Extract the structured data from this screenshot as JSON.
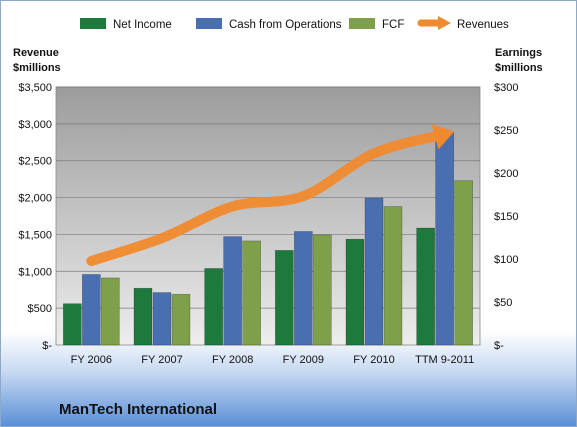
{
  "chart_data": {
    "type": "bar",
    "title": "ManTech International",
    "categories": [
      "FY 2006",
      "FY 2007",
      "FY 2008",
      "FY 2009",
      "FY 2010",
      "TTM 9-2011"
    ],
    "series": [
      {
        "name": "Net Income",
        "axis": "right",
        "color": "#1e7a3c",
        "values": [
          48,
          66,
          89,
          110,
          123,
          136
        ]
      },
      {
        "name": "Cash from Operations",
        "axis": "right",
        "color": "#4a6fb0",
        "values": [
          82,
          61,
          126,
          132,
          171,
          248
        ]
      },
      {
        "name": "FCF",
        "axis": "right",
        "color": "#7ea04a",
        "values": [
          78,
          59,
          121,
          128,
          161,
          191
        ]
      },
      {
        "name": "Revenues",
        "axis": "left",
        "type": "line",
        "color": "#f08a2e",
        "values": [
          1140,
          1450,
          1880,
          2020,
          2600,
          2860
        ]
      }
    ],
    "ylabel_left": [
      "Revenue",
      "$millions"
    ],
    "ylabel_right": [
      "Earnings",
      "$millions"
    ],
    "ylim_left": [
      0,
      3500
    ],
    "ylim_right": [
      0,
      300
    ],
    "yticks_left": [
      "$-",
      "$500",
      "$1,000",
      "$1,500",
      "$2,000",
      "$2,500",
      "$3,000",
      "$3,500"
    ],
    "yticks_right": [
      "$-",
      "$50",
      "$100",
      "$150",
      "$200",
      "$250",
      "$300"
    ],
    "grid": true,
    "legend_position": "top"
  }
}
